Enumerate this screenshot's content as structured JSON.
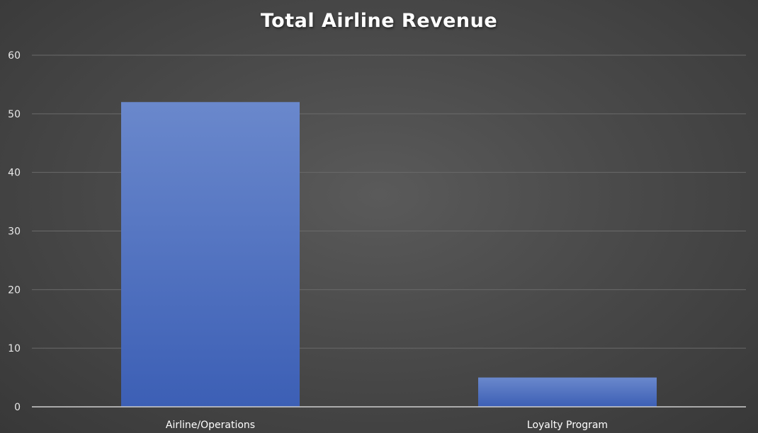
{
  "chart_data": {
    "type": "bar",
    "title": "Total Airline Revenue",
    "categories": [
      "Airline/Operations",
      "Loyalty Program"
    ],
    "values": [
      52,
      5
    ],
    "ylim": [
      0,
      60
    ],
    "yticks": [
      0,
      10,
      20,
      30,
      40,
      50,
      60
    ],
    "xlabel": "",
    "ylabel": "",
    "grid": true,
    "legend": "none",
    "bar_color": "#4a70c8",
    "bar_color_light": "#6a88cc",
    "bar_color_dark": "#3c5fb5",
    "gridline_color": "#6a6a6a",
    "axis_color": "#cfcfcf"
  }
}
